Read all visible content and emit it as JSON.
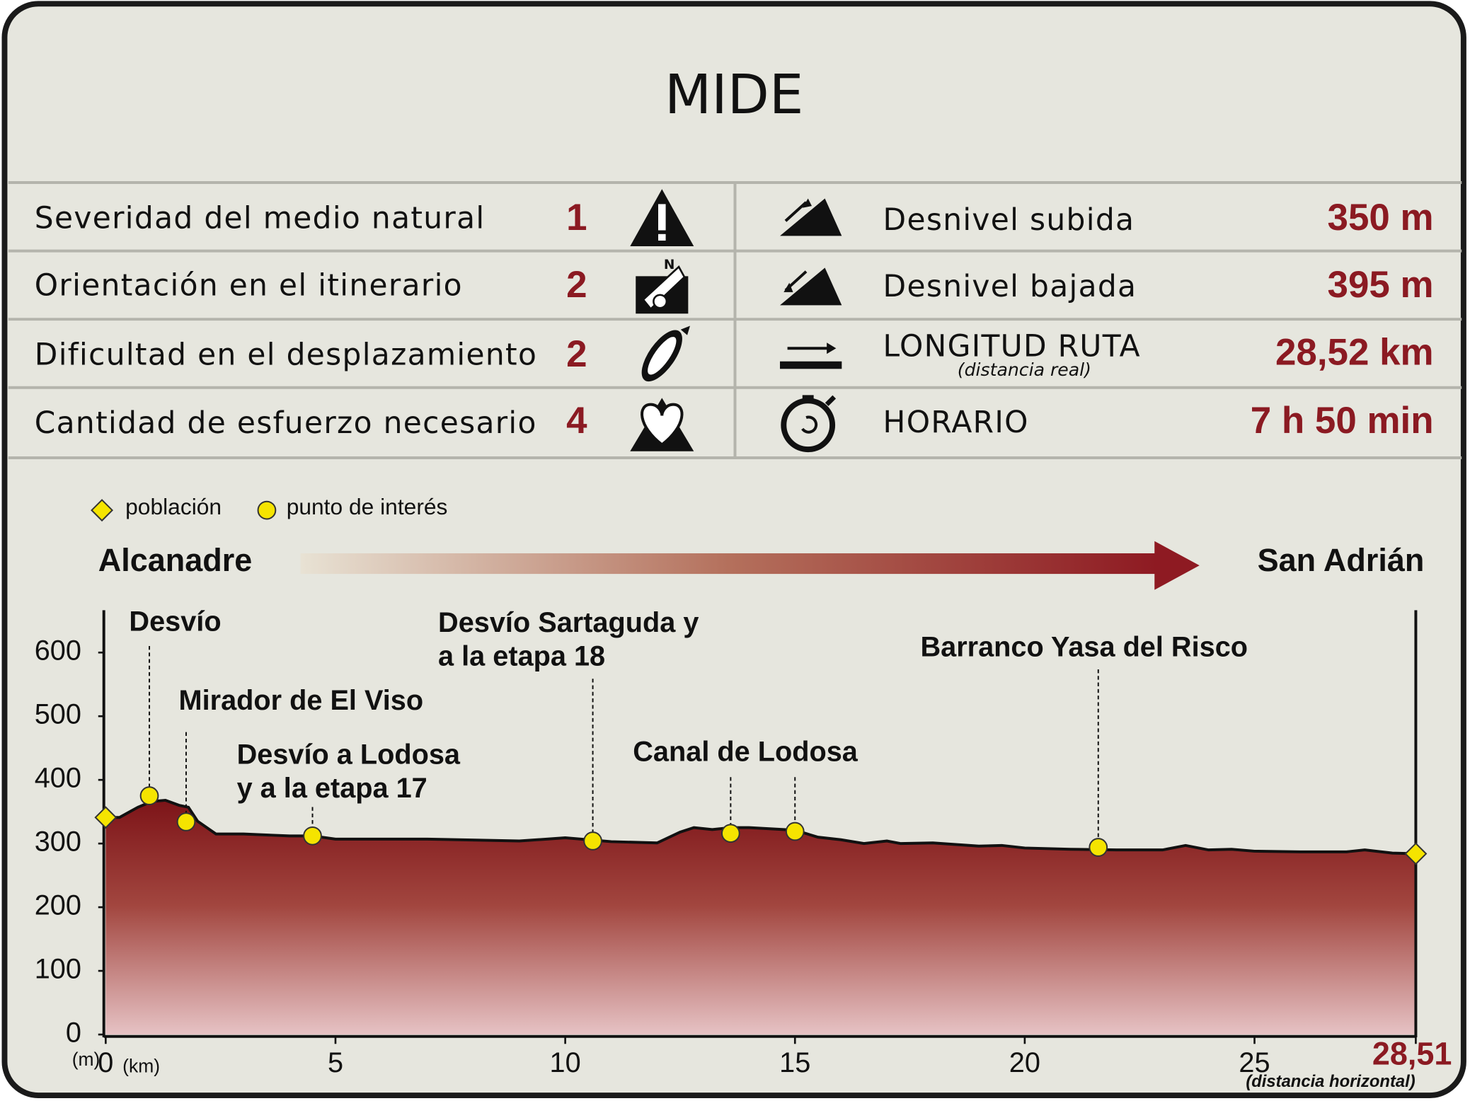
{
  "mide": {
    "title": "MIDE",
    "rows": [
      {
        "label": "Severidad del medio natural",
        "value": "1"
      },
      {
        "label": "Orientación en el itinerario",
        "value": "2"
      },
      {
        "label": "Dificultad en el desplazamiento",
        "value": "2"
      },
      {
        "label": "Cantidad de esfuerzo necesario",
        "value": "4"
      }
    ],
    "stats": [
      {
        "label": "Desnivel subida",
        "value": "350 m"
      },
      {
        "label": "Desnivel bajada",
        "value": "395 m"
      },
      {
        "label": "LONGITUD RUTA",
        "sublabel": "(distancia real)",
        "value": "28,52 km"
      },
      {
        "label": "HORARIO",
        "value": "7 h 50 min"
      }
    ]
  },
  "chart_data": {
    "type": "area",
    "start": "Alcanadre",
    "end": "San Adrián",
    "y_unit": "(m)",
    "x_unit": "(km)",
    "x_note": "(distancia horizontal)",
    "xlim": [
      0,
      28.51
    ],
    "ylim": [
      0,
      665
    ],
    "xticks": [
      0,
      5,
      10,
      15,
      20,
      25,
      {
        "value": 28.51,
        "label": "28,51"
      }
    ],
    "yticks": [
      0,
      100,
      200,
      300,
      400,
      500,
      600
    ],
    "profile": {
      "color": "#7d1418",
      "x": [
        0,
        0.3,
        0.7,
        1,
        1.3,
        1.6,
        1.8,
        2.0,
        2.4,
        3,
        4,
        4.5,
        5,
        7,
        9,
        10,
        11,
        12,
        12.5,
        12.8,
        13.2,
        13.6,
        14,
        15,
        15.5,
        16,
        16.5,
        17,
        17.3,
        18,
        19,
        19.5,
        20,
        21,
        22,
        23,
        23.5,
        24,
        24.5,
        25,
        26,
        27,
        27.4,
        28,
        28.51
      ],
      "values": [
        341,
        341,
        357,
        366,
        368,
        360,
        357,
        335,
        315,
        315,
        312,
        312,
        307,
        307,
        304,
        309,
        303,
        301,
        318,
        325,
        322,
        325,
        325,
        321,
        310,
        306,
        300,
        304,
        300,
        301,
        296,
        297,
        293,
        291,
        290,
        290,
        297,
        290,
        291,
        288,
        287,
        287,
        290,
        285,
        284
      ]
    },
    "series": [
      {
        "name": "población",
        "marker": "diamond",
        "color": "#f5e400",
        "x": [
          0,
          28.51
        ],
        "values": [
          341,
          284
        ]
      },
      {
        "name": "punto de interés",
        "marker": "circle",
        "color": "#f5e400",
        "x": [
          0.95,
          1.75,
          4.5,
          10.6,
          13.6,
          15,
          21.6
        ],
        "values": [
          375,
          334,
          312,
          304,
          316,
          319,
          294
        ]
      }
    ],
    "annotations": [
      {
        "text": [
          "Desvío"
        ],
        "x": [
          0.95
        ]
      },
      {
        "text": [
          "Mirador de El Viso"
        ],
        "x": [
          1.75
        ]
      },
      {
        "text": [
          "Desvío a Lodosa",
          "y a la etapa 17"
        ],
        "x": [
          4.5
        ]
      },
      {
        "text": [
          "Desvío Sartaguda y",
          "a la etapa 18"
        ],
        "x": [
          10.6
        ]
      },
      {
        "text": [
          "Canal de Lodosa"
        ],
        "x": [
          13.6,
          15
        ]
      },
      {
        "text": [
          "Barranco Yasa del Risco"
        ],
        "x": [
          21.6
        ]
      }
    ]
  }
}
